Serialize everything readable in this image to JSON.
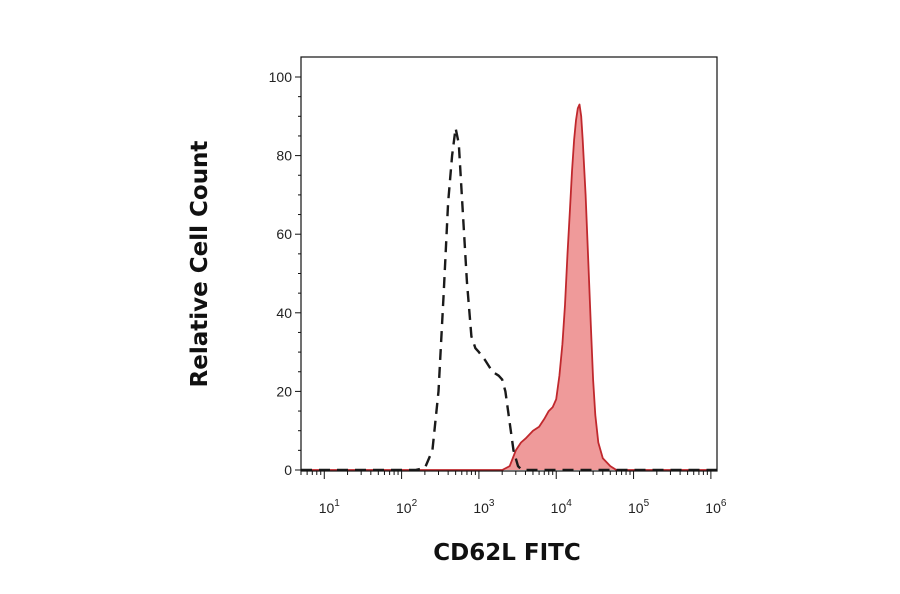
{
  "chart_data": {
    "type": "area",
    "title": "",
    "xlabel": "CD62L FITC",
    "ylabel": "Relative Cell Count",
    "x_scale": "log",
    "xlim": [
      5,
      1200000
    ],
    "ylim": [
      0,
      100
    ],
    "x_ticks": [
      {
        "base": "10",
        "exp": "1",
        "value": 10
      },
      {
        "base": "10",
        "exp": "2",
        "value": 100
      },
      {
        "base": "10",
        "exp": "3",
        "value": 1000
      },
      {
        "base": "10",
        "exp": "4",
        "value": 10000
      },
      {
        "base": "10",
        "exp": "5",
        "value": 100000
      },
      {
        "base": "10",
        "exp": "6",
        "value": 1000000
      }
    ],
    "y_ticks": [
      "0",
      "20",
      "40",
      "60",
      "80",
      "100"
    ],
    "grid": false,
    "legend": "none",
    "series": [
      {
        "style": "dashed",
        "color": "#1a1a1a",
        "fill": "none",
        "x": [
          5,
          150,
          200,
          250,
          300,
          350,
          400,
          450,
          500,
          550,
          600,
          700,
          800,
          900,
          1000,
          1200,
          1500,
          1800,
          2000,
          2200,
          2500,
          2800,
          3200,
          3600,
          4000,
          6000,
          100000,
          1200000
        ],
        "y": [
          0,
          0,
          0.5,
          5,
          20,
          45,
          68,
          80,
          87,
          83,
          70,
          48,
          34,
          31,
          30,
          28,
          25,
          24,
          23,
          20,
          12,
          5,
          1,
          0,
          0,
          0,
          0,
          0
        ]
      },
      {
        "style": "solid",
        "color": "#c0282d",
        "fill": "#ef9a9a",
        "x": [
          5,
          2000,
          2500,
          3000,
          3500,
          4000,
          5000,
          6000,
          7000,
          8000,
          9000,
          10000,
          11000,
          12000,
          13000,
          14000,
          15000,
          16000,
          17000,
          18000,
          19000,
          20000,
          21000,
          22000,
          24000,
          26000,
          28000,
          30000,
          32000,
          35000,
          40000,
          50000,
          60000,
          100000,
          1200000
        ],
        "y": [
          0,
          0,
          1,
          5,
          7,
          8,
          10,
          11,
          13,
          15,
          16,
          18,
          24,
          32,
          42,
          55,
          66,
          76,
          84,
          89,
          92,
          93,
          90,
          84,
          70,
          53,
          37,
          23,
          14,
          7,
          3,
          1,
          0,
          0,
          0
        ]
      }
    ]
  }
}
